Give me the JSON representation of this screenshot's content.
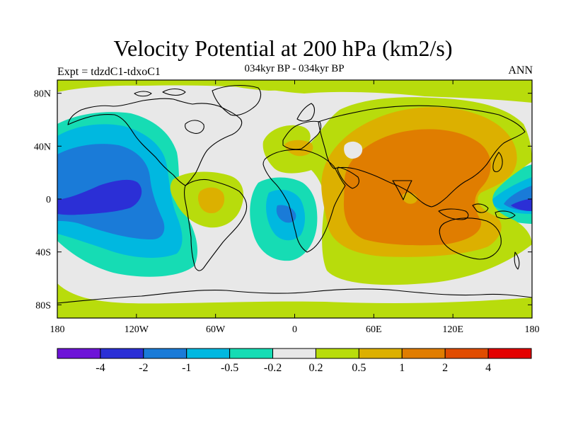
{
  "header": {
    "title": "Velocity Potential at 200 hPa (km2/s)",
    "subtitle": "034kyr BP - 034kyr BP",
    "left_label": "Expt = tdzdC1-tdxoC1",
    "right_label": "ANN"
  },
  "map_data": {
    "type": "filled-contour-map",
    "projection": "cylindrical-equidistant",
    "variable": "Velocity Potential",
    "level": "200 hPa",
    "units": "km2/s",
    "lon_range": [
      -180,
      180
    ],
    "lat_range": [
      -90,
      90
    ],
    "x_ticks": [
      {
        "value": -180,
        "label": "180"
      },
      {
        "value": -120,
        "label": "120W"
      },
      {
        "value": -60,
        "label": "60W"
      },
      {
        "value": 0,
        "label": "0"
      },
      {
        "value": 60,
        "label": "60E"
      },
      {
        "value": 120,
        "label": "120E"
      },
      {
        "value": 180,
        "label": "180"
      }
    ],
    "y_ticks": [
      {
        "value": 80,
        "label": "80N"
      },
      {
        "value": 40,
        "label": "40N"
      },
      {
        "value": 0,
        "label": "0"
      },
      {
        "value": -40,
        "label": "40S"
      },
      {
        "value": -80,
        "label": "80S"
      }
    ]
  },
  "colorbar": {
    "bins": [
      {
        "color": "#6d13d8"
      },
      {
        "color": "#2b2fd6"
      },
      {
        "color": "#1a7bd8"
      },
      {
        "color": "#00b8e0"
      },
      {
        "color": "#16dcb4"
      },
      {
        "color": "#e8e8e8"
      },
      {
        "color": "#b8dc0c"
      },
      {
        "color": "#dcb000"
      },
      {
        "color": "#e07d00"
      },
      {
        "color": "#e04c00"
      },
      {
        "color": "#e40000"
      }
    ],
    "boundaries": [
      "-4",
      "-2",
      "-1",
      "-0.5",
      "-0.2",
      "0.2",
      "0.5",
      "1",
      "2",
      "4"
    ]
  }
}
